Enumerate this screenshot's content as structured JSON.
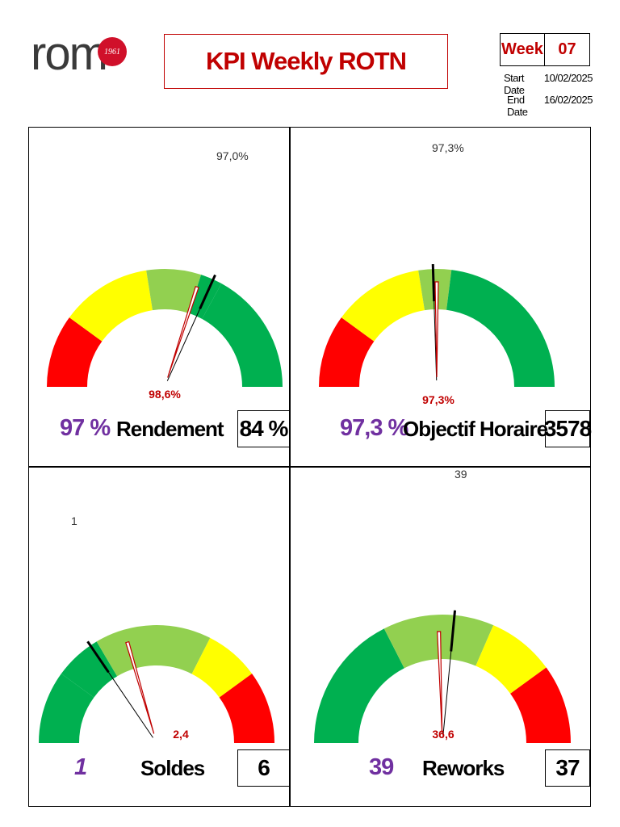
{
  "logo": {
    "text": "rom",
    "badge": "1961"
  },
  "title": "KPI Weekly ROTN",
  "week": {
    "label": "Week",
    "value": "07"
  },
  "dates": {
    "start_label": "Start Date",
    "start_value": "10/02/2025",
    "end_label": "End Date",
    "end_value": "16/02/2025"
  },
  "colors": {
    "red": "#ff0000",
    "yellow": "#ffff00",
    "light_green": "#92d050",
    "green": "#00b050",
    "purple": "#7030a0",
    "dark_red": "#c00000"
  },
  "chart_data": [
    {
      "type": "gauge",
      "name": "Rendement",
      "actual_label": "97 %",
      "box_value": "84 %",
      "segments": [
        {
          "color": "red",
          "from": 0,
          "to": 0.2
        },
        {
          "color": "yellow",
          "from": 0.2,
          "to": 0.45
        },
        {
          "color": "light_green",
          "from": 0.45,
          "to": 0.6
        },
        {
          "color": "green",
          "from": 0.6,
          "to": 0.66
        },
        {
          "color": "green",
          "from": 0.66,
          "to": 1
        }
      ],
      "needle_black": {
        "label": "97,0%",
        "fraction": 0.635
      },
      "needle_red": {
        "label": "98,6%",
        "fraction": 0.6
      }
    },
    {
      "type": "gauge",
      "name": "Objectif Horaire",
      "actual_label": "97,3 %",
      "box_value": "3578",
      "segments": [
        {
          "color": "red",
          "from": 0,
          "to": 0.2
        },
        {
          "color": "yellow",
          "from": 0.2,
          "to": 0.45
        },
        {
          "color": "light_green",
          "from": 0.45,
          "to": 0.54
        },
        {
          "color": "green",
          "from": 0.54,
          "to": 1
        }
      ],
      "needle_black": {
        "label": "97,3%",
        "fraction": 0.49
      },
      "needle_red": {
        "label": "97,3%",
        "fraction": 0.5
      }
    },
    {
      "type": "gauge",
      "name": "Soldes",
      "actual_label": "1",
      "box_value": "6",
      "segments": [
        {
          "color": "green",
          "from": 0,
          "to": 0.2
        },
        {
          "color": "green",
          "from": 0.2,
          "to": 0.33
        },
        {
          "color": "light_green",
          "from": 0.33,
          "to": 0.65
        },
        {
          "color": "yellow",
          "from": 0.65,
          "to": 0.8
        },
        {
          "color": "red",
          "from": 0.8,
          "to": 1
        }
      ],
      "needle_black": {
        "label": "1",
        "fraction": 0.31
      },
      "needle_red": {
        "label": "2,4",
        "fraction": 0.41
      }
    },
    {
      "type": "gauge",
      "name": "Reworks",
      "actual_label": "39",
      "box_value": "37",
      "segments": [
        {
          "color": "green",
          "from": 0,
          "to": 0.35
        },
        {
          "color": "light_green",
          "from": 0.35,
          "to": 0.63
        },
        {
          "color": "yellow",
          "from": 0.63,
          "to": 0.8
        },
        {
          "color": "red",
          "from": 0.8,
          "to": 1
        }
      ],
      "needle_black": {
        "label": "39",
        "fraction": 0.53
      },
      "needle_red": {
        "label": "36,6",
        "fraction": 0.49
      }
    }
  ]
}
